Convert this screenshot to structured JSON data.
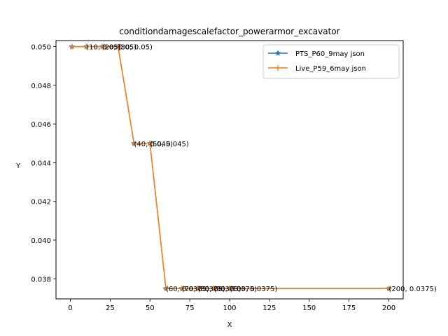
{
  "chart_data": {
    "type": "line",
    "title": "conditiondamagescalefactor_powerarmor_excavator",
    "xlabel": "X",
    "ylabel": "Y",
    "xlim": [
      -9,
      209
    ],
    "ylim": [
      0.03696,
      0.05031
    ],
    "xticks": [
      0,
      25,
      50,
      75,
      100,
      125,
      150,
      175,
      200
    ],
    "yticks": [
      0.038,
      0.04,
      0.042,
      0.044,
      0.046,
      0.048,
      0.05
    ],
    "ytick_labels": [
      "0.038",
      "0.040",
      "0.042",
      "0.044",
      "0.046",
      "0.048",
      "0.050"
    ],
    "grid": false,
    "legend_position": "top-right",
    "series": [
      {
        "name": "PTS_P60_9may json",
        "color": "#1f77b4",
        "marker": "star",
        "x": [
          1,
          10,
          20,
          30,
          40,
          50,
          60,
          70,
          80,
          90,
          100,
          200
        ],
        "y": [
          0.05,
          0.05,
          0.05,
          0.05,
          0.045,
          0.045,
          0.0375,
          0.0375,
          0.0375,
          0.0375,
          0.0375,
          0.0375
        ]
      },
      {
        "name": "Live_P59_6may json",
        "color": "#ff7f0e",
        "marker": "plus",
        "x": [
          1,
          10,
          20,
          30,
          40,
          50,
          60,
          70,
          80,
          90,
          100,
          200
        ],
        "y": [
          0.05,
          0.05,
          0.05,
          0.05,
          0.045,
          0.045,
          0.0375,
          0.0375,
          0.0375,
          0.0375,
          0.0375,
          0.0375
        ]
      }
    ],
    "annotations": [
      {
        "x": 10,
        "y": 0.05,
        "text": "(10, 0.05)"
      },
      {
        "x": 20,
        "y": 0.05,
        "text": "(20, 0.05)"
      },
      {
        "x": 30,
        "y": 0.05,
        "text": "(30, 0.05)"
      },
      {
        "x": 40,
        "y": 0.045,
        "text": "(40, 0.045)"
      },
      {
        "x": 50,
        "y": 0.045,
        "text": "(50, 0.045)"
      },
      {
        "x": 60,
        "y": 0.0375,
        "text": "(60, 0.0375)"
      },
      {
        "x": 70,
        "y": 0.0375,
        "text": "(70, 0.0375)"
      },
      {
        "x": 80,
        "y": 0.0375,
        "text": "(80, 0.0375)"
      },
      {
        "x": 90,
        "y": 0.0375,
        "text": "(90, 0.0375)"
      },
      {
        "x": 100,
        "y": 0.0375,
        "text": "(100, 0.0375)"
      },
      {
        "x": 200,
        "y": 0.0375,
        "text": "(200, 0.0375)"
      }
    ]
  }
}
